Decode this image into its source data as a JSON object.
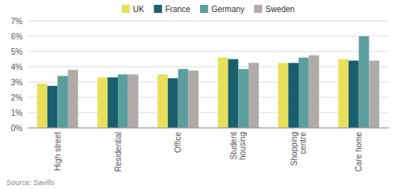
{
  "chart_data": {
    "type": "bar",
    "categories": [
      "High street",
      "Residential",
      "Office",
      "Student\nhousing",
      "Shopping\ncentre",
      "Care home"
    ],
    "series": [
      {
        "name": "UK",
        "color": "#e8e05a",
        "values": [
          2.9,
          3.3,
          3.5,
          4.6,
          4.25,
          4.5
        ]
      },
      {
        "name": "France",
        "color": "#1a5f6e",
        "values": [
          2.75,
          3.3,
          3.25,
          4.5,
          4.25,
          4.4
        ]
      },
      {
        "name": "Germany",
        "color": "#5b9e9e",
        "values": [
          3.4,
          3.5,
          3.85,
          3.85,
          4.6,
          6.0
        ]
      },
      {
        "name": "Sweden",
        "color": "#b0aaa8",
        "values": [
          3.8,
          3.5,
          3.75,
          4.25,
          4.75,
          4.4
        ]
      }
    ],
    "ylim": [
      0,
      7
    ],
    "yticks": [
      {
        "value": 0,
        "label": "0%"
      },
      {
        "value": 1,
        "label": "1%"
      },
      {
        "value": 2,
        "label": "2%"
      },
      {
        "value": 3,
        "label": "3%"
      },
      {
        "value": 4,
        "label": "4%"
      },
      {
        "value": 5,
        "label": "5%"
      },
      {
        "value": 6,
        "label": "6%"
      },
      {
        "value": 7,
        "label": "7%"
      }
    ],
    "grid": true,
    "legend": "top",
    "annotations": [
      "Source: Savills"
    ]
  }
}
